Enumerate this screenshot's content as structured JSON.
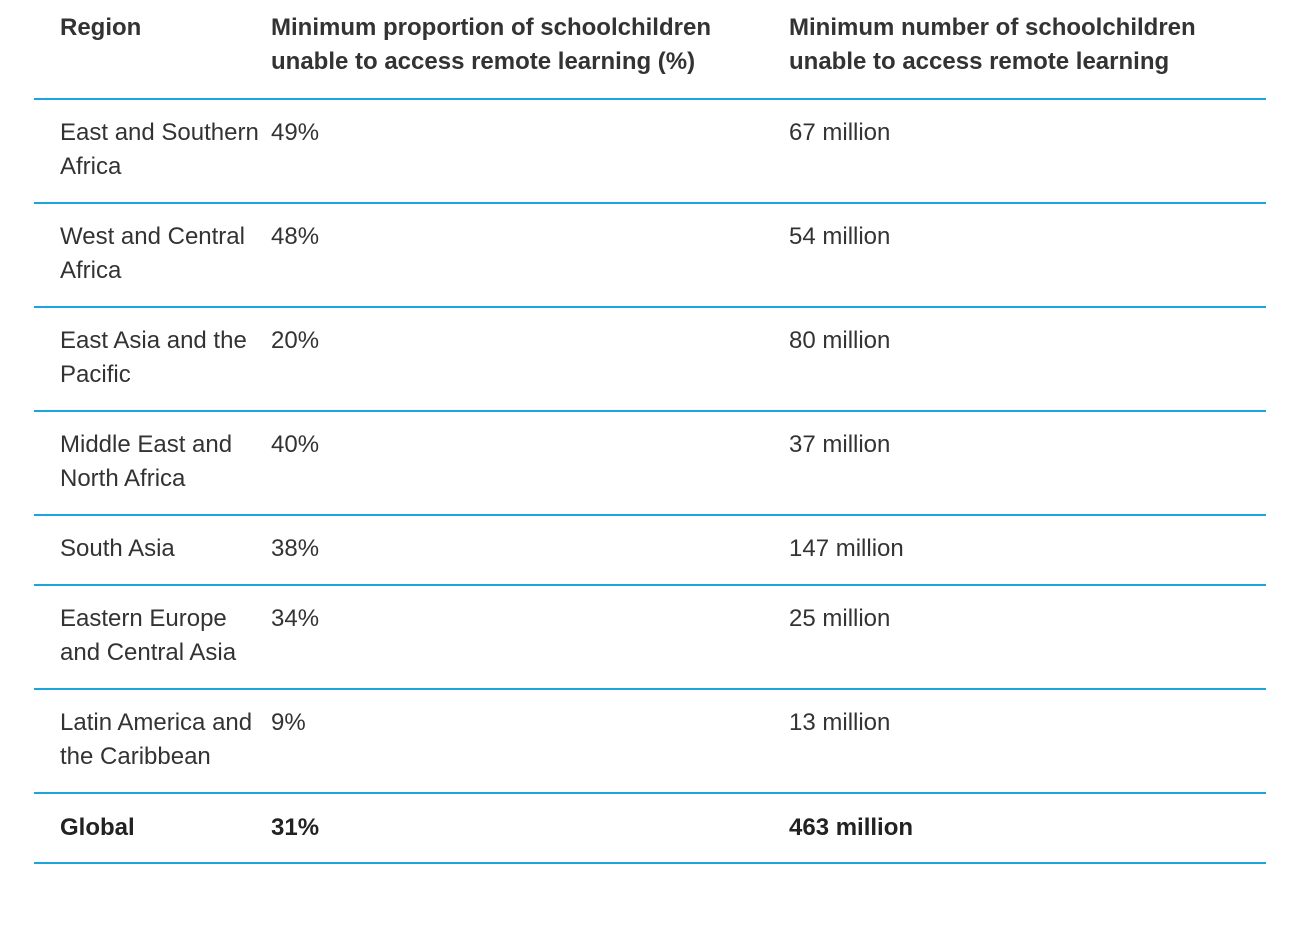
{
  "table": {
    "headers": [
      "Region",
      "Minimum proportion of schoolchildren unable to access remote learning (%)",
      "Minimum number of schoolchildren unable to access remote learning"
    ],
    "rows": [
      {
        "region": "East and Southern Africa",
        "proportion": "49%",
        "number": "67 million"
      },
      {
        "region": "West and Central Africa",
        "proportion": "48%",
        "number": "54 million"
      },
      {
        "region": "East Asia and the Pacific",
        "proportion": "20%",
        "number": "80 million"
      },
      {
        "region": "Middle East and North Africa",
        "proportion": "40%",
        "number": "37 million"
      },
      {
        "region": "South Asia",
        "proportion": "38%",
        "number": "147 million"
      },
      {
        "region": "Eastern Europe and Central Asia",
        "proportion": "34%",
        "number": "25 million"
      },
      {
        "region": "Latin America and the Caribbean",
        "proportion": "9%",
        "number": "13 million"
      }
    ],
    "total": {
      "region": "Global",
      "proportion": "31%",
      "number": "463 million"
    }
  },
  "colors": {
    "rule": "#1ca5dc",
    "text": "#333333"
  }
}
